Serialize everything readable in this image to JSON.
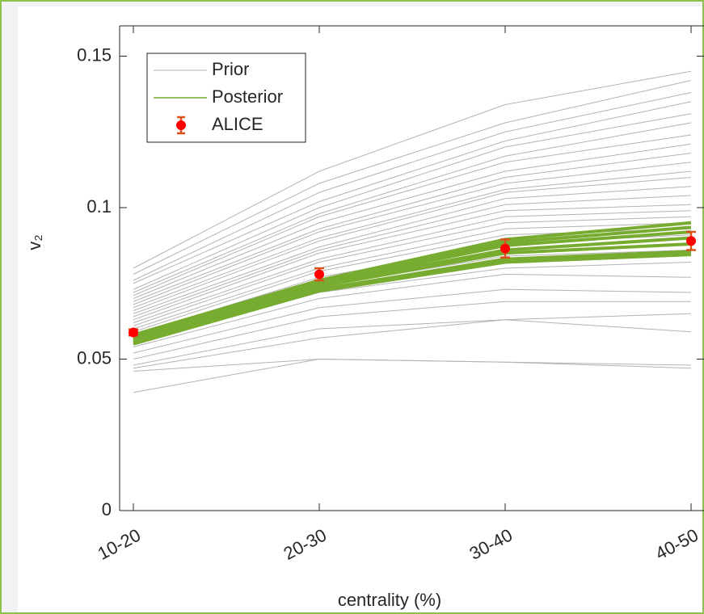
{
  "chart_data": {
    "type": "line",
    "xlabel": "centrality (%)",
    "ylabel": "v₂",
    "categories": [
      "10-20",
      "20-30",
      "30-40",
      "40-50"
    ],
    "ylim": [
      0,
      0.16
    ],
    "yticks": [
      0,
      0.05,
      0.1,
      0.15
    ],
    "legend": "upper left",
    "series": [
      {
        "name": "Prior",
        "color": "#b3b3b3",
        "lines": [
          [
            0.08,
            0.112,
            0.134,
            0.145
          ],
          [
            0.078,
            0.108,
            0.128,
            0.142
          ],
          [
            0.076,
            0.105,
            0.125,
            0.138
          ],
          [
            0.075,
            0.102,
            0.122,
            0.135
          ],
          [
            0.073,
            0.1,
            0.12,
            0.131
          ],
          [
            0.072,
            0.098,
            0.117,
            0.128
          ],
          [
            0.071,
            0.097,
            0.115,
            0.124
          ],
          [
            0.07,
            0.095,
            0.112,
            0.121
          ],
          [
            0.069,
            0.093,
            0.11,
            0.118
          ],
          [
            0.068,
            0.092,
            0.108,
            0.115
          ],
          [
            0.067,
            0.09,
            0.106,
            0.112
          ],
          [
            0.066,
            0.089,
            0.105,
            0.11
          ],
          [
            0.065,
            0.087,
            0.103,
            0.107
          ],
          [
            0.064,
            0.086,
            0.101,
            0.104
          ],
          [
            0.063,
            0.085,
            0.099,
            0.101
          ],
          [
            0.062,
            0.083,
            0.097,
            0.099
          ],
          [
            0.061,
            0.082,
            0.095,
            0.097
          ],
          [
            0.06,
            0.08,
            0.093,
            0.095
          ],
          [
            0.059,
            0.079,
            0.091,
            0.093
          ],
          [
            0.058,
            0.077,
            0.088,
            0.091
          ],
          [
            0.056,
            0.074,
            0.084,
            0.086
          ],
          [
            0.055,
            0.072,
            0.08,
            0.082
          ],
          [
            0.054,
            0.07,
            0.078,
            0.077
          ],
          [
            0.052,
            0.067,
            0.073,
            0.072
          ],
          [
            0.05,
            0.064,
            0.069,
            0.069
          ],
          [
            0.048,
            0.06,
            0.063,
            0.065
          ],
          [
            0.047,
            0.057,
            0.063,
            0.059
          ],
          [
            0.046,
            0.05,
            0.049,
            0.047
          ],
          [
            0.039,
            0.05,
            0.049,
            0.048
          ]
        ]
      },
      {
        "name": "Posterior",
        "color": "#77ac30",
        "lines": [
          [
            0.055,
            0.0725,
            0.082,
            0.0845
          ],
          [
            0.0555,
            0.073,
            0.083,
            0.0855
          ],
          [
            0.056,
            0.074,
            0.085,
            0.088
          ],
          [
            0.0565,
            0.0745,
            0.086,
            0.09
          ],
          [
            0.057,
            0.075,
            0.0875,
            0.092
          ],
          [
            0.0575,
            0.0755,
            0.0885,
            0.0935
          ],
          [
            0.058,
            0.076,
            0.0895,
            0.095
          ]
        ]
      },
      {
        "name": "ALICE",
        "color": "#ff0000",
        "errcolor": "#d95319",
        "values": [
          0.0588,
          0.078,
          0.0865,
          0.089
        ],
        "errors": [
          0.001,
          0.002,
          0.003,
          0.003
        ]
      }
    ]
  }
}
